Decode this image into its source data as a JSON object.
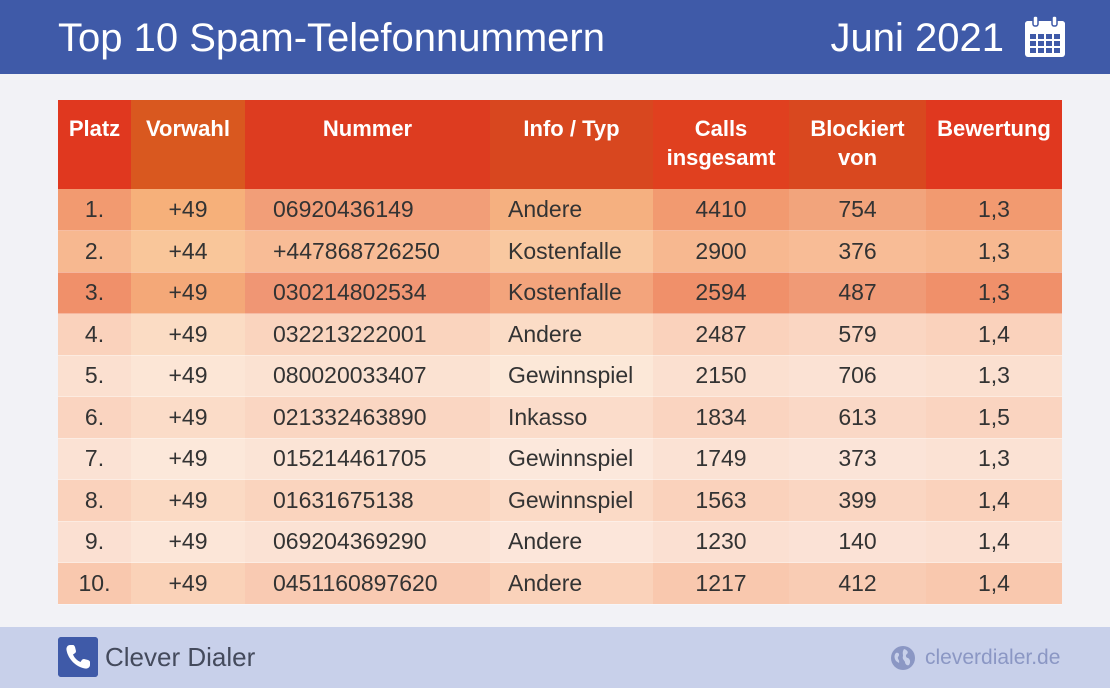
{
  "header": {
    "title": "Top 10 Spam-Telefonnummern",
    "date": "Juni 2021",
    "icon": "calendar-icon"
  },
  "table": {
    "columns": [
      "Platz",
      "Vorwahl",
      "Nummer",
      "Info / Typ",
      "Calls insgesamt",
      "Blockiert von",
      "Bewertung"
    ],
    "header_colors": [
      "#e0381f",
      "#d9581f",
      "#dd3c20",
      "#d8471f",
      "#e0401f",
      "#d9481f",
      "#e0381f"
    ],
    "rows": [
      {
        "platz": "1.",
        "vorwahl": "+49",
        "nummer": "06920436149",
        "info": "Andere",
        "calls": "4410",
        "blockiert": "754",
        "bewertung": "1,3"
      },
      {
        "platz": "2.",
        "vorwahl": "+44",
        "nummer": "+447868726250",
        "info": "Kostenfalle",
        "calls": "2900",
        "blockiert": "376",
        "bewertung": "1,3"
      },
      {
        "platz": "3.",
        "vorwahl": "+49",
        "nummer": "030214802534",
        "info": "Kostenfalle",
        "calls": "2594",
        "blockiert": "487",
        "bewertung": "1,3"
      },
      {
        "platz": "4.",
        "vorwahl": "+49",
        "nummer": "032213222001",
        "info": "Andere",
        "calls": "2487",
        "blockiert": "579",
        "bewertung": "1,4"
      },
      {
        "platz": "5.",
        "vorwahl": "+49",
        "nummer": "080020033407",
        "info": "Gewinnspiel",
        "calls": "2150",
        "blockiert": "706",
        "bewertung": "1,3"
      },
      {
        "platz": "6.",
        "vorwahl": "+49",
        "nummer": "021332463890",
        "info": "Inkasso",
        "calls": "1834",
        "blockiert": "613",
        "bewertung": "1,5"
      },
      {
        "platz": "7.",
        "vorwahl": "+49",
        "nummer": "015214461705",
        "info": "Gewinnspiel",
        "calls": "1749",
        "blockiert": "373",
        "bewertung": "1,3"
      },
      {
        "platz": "8.",
        "vorwahl": "+49",
        "nummer": "01631675138",
        "info": "Gewinnspiel",
        "calls": "1563",
        "blockiert": "399",
        "bewertung": "1,4"
      },
      {
        "platz": "9.",
        "vorwahl": "+49",
        "nummer": "069204369290",
        "info": "Andere",
        "calls": "1230",
        "blockiert": "140",
        "bewertung": "1,4"
      },
      {
        "platz": "10.",
        "vorwahl": "+49",
        "nummer": "0451160897620",
        "info": "Andere",
        "calls": "1217",
        "blockiert": "412",
        "bewertung": "1,4"
      }
    ]
  },
  "footer": {
    "brand": "Clever Dialer",
    "brand_icon": "phone-icon",
    "website": "cleverdialer.de",
    "website_icon": "globe-icon"
  },
  "colors": {
    "header_bg": "#3f5aa8",
    "footer_bg": "#c8d0ea",
    "table_header": "#e0381f"
  }
}
